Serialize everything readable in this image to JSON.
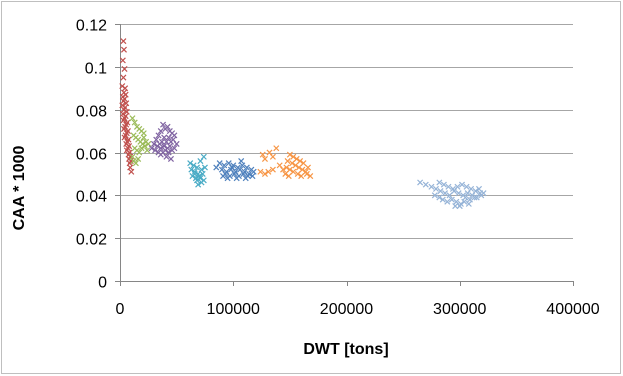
{
  "chart_data": {
    "type": "scatter",
    "title": "",
    "xlabel": "DWT [tons]",
    "ylabel": "CAA * 1000",
    "xlim": [
      0,
      400000
    ],
    "ylim": [
      0,
      0.12
    ],
    "x_ticks": [
      0,
      100000,
      200000,
      300000,
      400000
    ],
    "x_tick_labels": [
      "0",
      "100000",
      "200000",
      "300000",
      "400000"
    ],
    "y_ticks": [
      0,
      0.02,
      0.04,
      0.06,
      0.08,
      0.1,
      0.12
    ],
    "y_tick_labels": [
      "0",
      "0.02",
      "0.04",
      "0.06",
      "0.08",
      "0.1",
      "0.12"
    ],
    "grid": "horizontal",
    "legend": "none",
    "marker": "x",
    "series": [
      {
        "color": "#c0504d",
        "points": [
          [
            3000,
            0.112
          ],
          [
            3500,
            0.108
          ],
          [
            2500,
            0.103
          ],
          [
            4000,
            0.099
          ],
          [
            3000,
            0.095
          ],
          [
            2000,
            0.091
          ],
          [
            4500,
            0.09
          ],
          [
            3500,
            0.088
          ],
          [
            5000,
            0.087
          ],
          [
            2500,
            0.086
          ],
          [
            4000,
            0.085
          ],
          [
            3000,
            0.084
          ],
          [
            5500,
            0.083
          ],
          [
            2000,
            0.082
          ],
          [
            4500,
            0.081
          ],
          [
            3500,
            0.08
          ],
          [
            6000,
            0.079
          ],
          [
            2500,
            0.078
          ],
          [
            5000,
            0.077
          ],
          [
            4000,
            0.076
          ],
          [
            3000,
            0.075
          ],
          [
            6500,
            0.074
          ],
          [
            5500,
            0.073
          ],
          [
            4500,
            0.072
          ],
          [
            3500,
            0.071
          ],
          [
            7000,
            0.07
          ],
          [
            6000,
            0.069
          ],
          [
            5000,
            0.068
          ],
          [
            4000,
            0.067
          ],
          [
            7500,
            0.066
          ],
          [
            6500,
            0.065
          ],
          [
            5500,
            0.064
          ],
          [
            8000,
            0.063
          ],
          [
            7000,
            0.062
          ],
          [
            6000,
            0.061
          ],
          [
            8500,
            0.06
          ],
          [
            7500,
            0.059
          ],
          [
            9000,
            0.058
          ],
          [
            8000,
            0.057
          ],
          [
            9500,
            0.056
          ],
          [
            8500,
            0.055
          ],
          [
            9000,
            0.053
          ],
          [
            10000,
            0.051
          ]
        ]
      },
      {
        "color": "#9bbb59",
        "points": [
          [
            11000,
            0.076
          ],
          [
            13000,
            0.074
          ],
          [
            15000,
            0.072
          ],
          [
            17000,
            0.071
          ],
          [
            19000,
            0.07
          ],
          [
            21000,
            0.069
          ],
          [
            12000,
            0.068
          ],
          [
            14000,
            0.067
          ],
          [
            16000,
            0.066
          ],
          [
            18000,
            0.065
          ],
          [
            20000,
            0.064
          ],
          [
            22000,
            0.063
          ],
          [
            13000,
            0.062
          ],
          [
            15000,
            0.061
          ],
          [
            17000,
            0.06
          ],
          [
            19000,
            0.062
          ],
          [
            11000,
            0.058
          ],
          [
            12000,
            0.056
          ],
          [
            14000,
            0.055
          ],
          [
            16000,
            0.057
          ],
          [
            23000,
            0.065
          ],
          [
            24000,
            0.061
          ],
          [
            21000,
            0.067
          ],
          [
            25000,
            0.064
          ]
        ]
      },
      {
        "color": "#8064a2",
        "points": [
          [
            38000,
            0.073
          ],
          [
            42000,
            0.072
          ],
          [
            40000,
            0.071
          ],
          [
            44000,
            0.07
          ],
          [
            36000,
            0.07
          ],
          [
            46000,
            0.069
          ],
          [
            34000,
            0.068
          ],
          [
            48000,
            0.068
          ],
          [
            39000,
            0.067
          ],
          [
            43000,
            0.067
          ],
          [
            32000,
            0.066
          ],
          [
            47000,
            0.066
          ],
          [
            37000,
            0.065
          ],
          [
            41000,
            0.065
          ],
          [
            45000,
            0.065
          ],
          [
            30000,
            0.064
          ],
          [
            35000,
            0.064
          ],
          [
            50000,
            0.064
          ],
          [
            33000,
            0.063
          ],
          [
            39000,
            0.063
          ],
          [
            44000,
            0.063
          ],
          [
            28000,
            0.062
          ],
          [
            36000,
            0.062
          ],
          [
            42000,
            0.062
          ],
          [
            48000,
            0.062
          ],
          [
            31000,
            0.061
          ],
          [
            40000,
            0.061
          ],
          [
            46000,
            0.061
          ],
          [
            34000,
            0.06
          ],
          [
            38000,
            0.06
          ],
          [
            43000,
            0.06
          ],
          [
            36000,
            0.059
          ],
          [
            41000,
            0.058
          ],
          [
            45000,
            0.057
          ]
        ]
      },
      {
        "color": "#4bacc6",
        "points": [
          [
            62000,
            0.055
          ],
          [
            65000,
            0.054
          ],
          [
            68000,
            0.053
          ],
          [
            71000,
            0.056
          ],
          [
            74000,
            0.058
          ],
          [
            63000,
            0.052
          ],
          [
            66000,
            0.051
          ],
          [
            69000,
            0.05
          ],
          [
            72000,
            0.052
          ],
          [
            75000,
            0.053
          ],
          [
            64000,
            0.049
          ],
          [
            67000,
            0.048
          ],
          [
            70000,
            0.049
          ],
          [
            73000,
            0.05
          ],
          [
            68000,
            0.047
          ],
          [
            71000,
            0.048
          ],
          [
            74000,
            0.047
          ],
          [
            69000,
            0.045
          ],
          [
            72000,
            0.046
          ],
          [
            66000,
            0.05
          ]
        ]
      },
      {
        "color": "#4f81bd",
        "points": [
          [
            88000,
            0.055
          ],
          [
            92000,
            0.054
          ],
          [
            96000,
            0.055
          ],
          [
            100000,
            0.054
          ],
          [
            104000,
            0.053
          ],
          [
            108000,
            0.054
          ],
          [
            112000,
            0.053
          ],
          [
            116000,
            0.052
          ],
          [
            90000,
            0.052
          ],
          [
            94000,
            0.051
          ],
          [
            98000,
            0.052
          ],
          [
            102000,
            0.051
          ],
          [
            106000,
            0.052
          ],
          [
            110000,
            0.051
          ],
          [
            114000,
            0.05
          ],
          [
            118000,
            0.051
          ],
          [
            85000,
            0.053
          ],
          [
            93000,
            0.05
          ],
          [
            97000,
            0.049
          ],
          [
            101000,
            0.05
          ],
          [
            105000,
            0.049
          ],
          [
            109000,
            0.05
          ],
          [
            113000,
            0.049
          ],
          [
            95000,
            0.048
          ],
          [
            103000,
            0.048
          ],
          [
            111000,
            0.048
          ],
          [
            99000,
            0.053
          ],
          [
            107000,
            0.056
          ],
          [
            91000,
            0.049
          ],
          [
            117000,
            0.049
          ]
        ]
      },
      {
        "color": "#f79646",
        "points": [
          [
            126000,
            0.059
          ],
          [
            132000,
            0.06
          ],
          [
            138000,
            0.062
          ],
          [
            128000,
            0.057
          ],
          [
            135000,
            0.058
          ],
          [
            150000,
            0.059
          ],
          [
            153000,
            0.058
          ],
          [
            156000,
            0.057
          ],
          [
            159000,
            0.056
          ],
          [
            162000,
            0.055
          ],
          [
            148000,
            0.056
          ],
          [
            152000,
            0.055
          ],
          [
            155000,
            0.054
          ],
          [
            158000,
            0.053
          ],
          [
            161000,
            0.052
          ],
          [
            164000,
            0.051
          ],
          [
            147000,
            0.053
          ],
          [
            150000,
            0.052
          ],
          [
            153000,
            0.051
          ],
          [
            157000,
            0.05
          ],
          [
            160000,
            0.049
          ],
          [
            165000,
            0.05
          ],
          [
            168000,
            0.049
          ],
          [
            146000,
            0.05
          ],
          [
            149000,
            0.049
          ],
          [
            124000,
            0.051
          ],
          [
            128000,
            0.05
          ],
          [
            131000,
            0.051
          ],
          [
            135000,
            0.052
          ],
          [
            141000,
            0.054
          ],
          [
            144000,
            0.052
          ],
          [
            166000,
            0.053
          ]
        ]
      },
      {
        "color": "#95b3d7",
        "points": [
          [
            265000,
            0.046
          ],
          [
            270000,
            0.045
          ],
          [
            275000,
            0.044
          ],
          [
            279000,
            0.043
          ],
          [
            283000,
            0.042
          ],
          [
            282000,
            0.046
          ],
          [
            286000,
            0.045
          ],
          [
            290000,
            0.044
          ],
          [
            294000,
            0.043
          ],
          [
            298000,
            0.044
          ],
          [
            302000,
            0.045
          ],
          [
            306000,
            0.044
          ],
          [
            310000,
            0.043
          ],
          [
            314000,
            0.042
          ],
          [
            318000,
            0.041
          ],
          [
            278000,
            0.04
          ],
          [
            282000,
            0.039
          ],
          [
            287000,
            0.041
          ],
          [
            291000,
            0.04
          ],
          [
            295000,
            0.042
          ],
          [
            299000,
            0.041
          ],
          [
            303000,
            0.04
          ],
          [
            307000,
            0.041
          ],
          [
            311000,
            0.04
          ],
          [
            315000,
            0.039
          ],
          [
            319000,
            0.04
          ],
          [
            293000,
            0.038
          ],
          [
            297000,
            0.037
          ],
          [
            301000,
            0.036
          ],
          [
            305000,
            0.039
          ],
          [
            309000,
            0.038
          ],
          [
            313000,
            0.039
          ],
          [
            296000,
            0.035
          ],
          [
            300000,
            0.035
          ],
          [
            304000,
            0.037
          ],
          [
            308000,
            0.036
          ],
          [
            289000,
            0.037
          ],
          [
            285000,
            0.038
          ],
          [
            317000,
            0.043
          ],
          [
            321000,
            0.041
          ]
        ]
      }
    ]
  }
}
